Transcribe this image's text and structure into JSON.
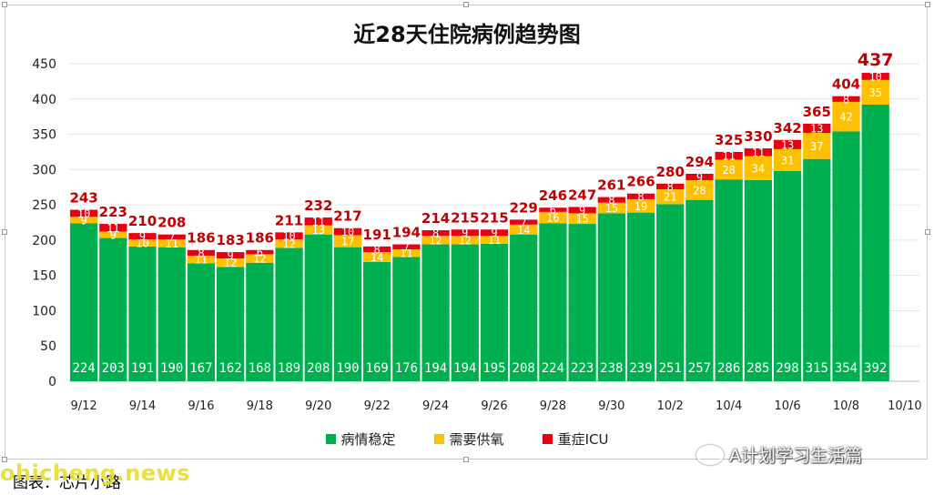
{
  "title": "近28天住院病例趋势图",
  "legend": {
    "stable": "病情稳定",
    "oxygen": "需要供氧",
    "icu": "重症ICU"
  },
  "colors": {
    "stable": "#00b050",
    "oxygen": "#ffc000",
    "icu": "#e60012",
    "total_label": "#c00000",
    "grid": "#e6e6e6"
  },
  "caption": "图表：芯片小路",
  "watermark": "ohicheng.news",
  "brand": "A计划学习生活篇",
  "chart_data": {
    "type": "bar",
    "stacked": true,
    "title": "近28天住院病例趋势图",
    "x": [
      "9/12",
      "9/13",
      "9/14",
      "9/15",
      "9/16",
      "9/17",
      "9/18",
      "9/19",
      "9/20",
      "9/21",
      "9/22",
      "9/23",
      "9/24",
      "9/25",
      "9/26",
      "9/27",
      "9/28",
      "9/29",
      "9/30",
      "10/1",
      "10/2",
      "10/3",
      "10/4",
      "10/5",
      "10/6",
      "10/7",
      "10/8",
      "10/9"
    ],
    "x_tick_labels": [
      "9/12",
      "9/14",
      "9/16",
      "9/18",
      "9/20",
      "9/22",
      "9/24",
      "9/26",
      "9/28",
      "9/30",
      "10/2",
      "10/4",
      "10/6",
      "10/8",
      "10/10"
    ],
    "ylim": [
      0,
      450
    ],
    "yticks": [
      0,
      50,
      100,
      150,
      200,
      250,
      300,
      350,
      400,
      450
    ],
    "grid": true,
    "legend_position": "bottom",
    "series": [
      {
        "name": "病情稳定",
        "values": [
          224,
          203,
          191,
          190,
          167,
          162,
          168,
          189,
          208,
          190,
          169,
          176,
          194,
          194,
          195,
          208,
          224,
          223,
          238,
          239,
          251,
          257,
          286,
          285,
          298,
          315,
          354,
          392
        ]
      },
      {
        "name": "需要供氧",
        "values": [
          9,
          9,
          10,
          11,
          11,
          12,
          12,
          12,
          13,
          17,
          14,
          11,
          12,
          12,
          11,
          14,
          16,
          15,
          15,
          19,
          21,
          28,
          28,
          34,
          31,
          37,
          42,
          35
        ]
      },
      {
        "name": "重症ICU",
        "values": [
          10,
          11,
          9,
          7,
          8,
          9,
          6,
          10,
          11,
          10,
          8,
          7,
          8,
          9,
          9,
          7,
          6,
          9,
          8,
          8,
          8,
          9,
          11,
          11,
          13,
          13,
          8,
          10
        ]
      }
    ],
    "totals": [
      243,
      223,
      210,
      208,
      186,
      183,
      186,
      211,
      232,
      217,
      191,
      194,
      214,
      215,
      215,
      229,
      246,
      247,
      261,
      266,
      280,
      294,
      325,
      330,
      342,
      365,
      404,
      437
    ]
  }
}
